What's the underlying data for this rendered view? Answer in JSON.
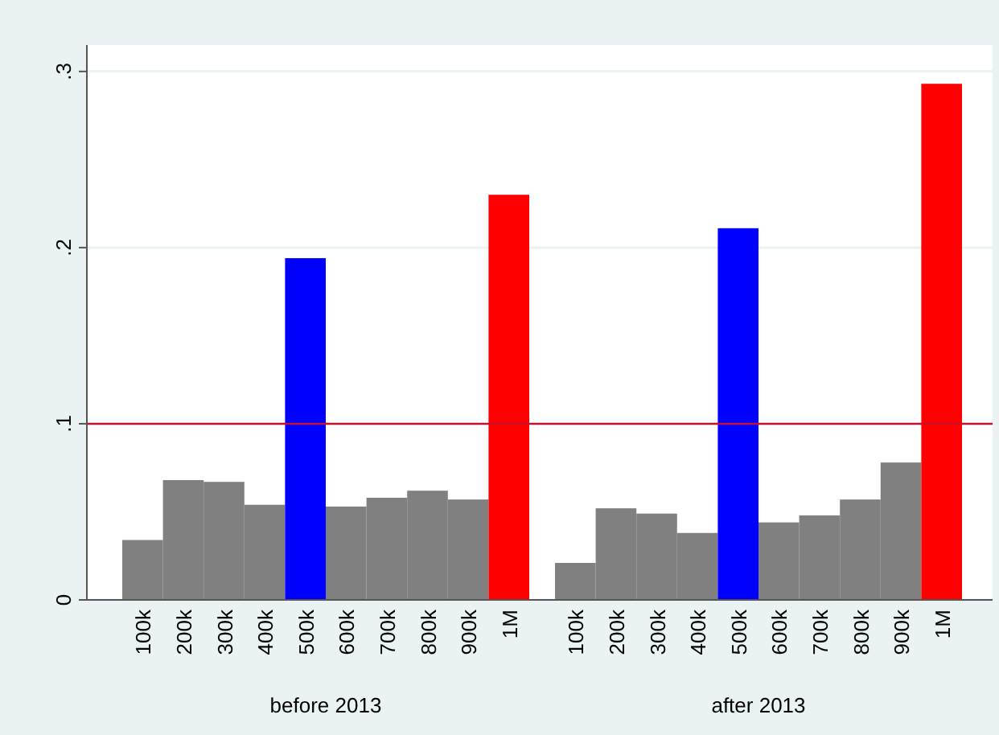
{
  "chart_data": {
    "type": "bar",
    "categories": [
      "100k",
      "200k",
      "300k",
      "400k",
      "500k",
      "600k",
      "700k",
      "800k",
      "900k",
      "1M",
      "100k",
      "200k",
      "300k",
      "400k",
      "500k",
      "600k",
      "700k",
      "800k",
      "900k",
      "1M"
    ],
    "values": [
      0.034,
      0.068,
      0.067,
      0.054,
      0.194,
      0.053,
      0.058,
      0.062,
      0.057,
      0.23,
      0.021,
      0.052,
      0.049,
      0.038,
      0.211,
      0.044,
      0.048,
      0.057,
      0.078,
      0.293
    ],
    "colors": [
      "#808080",
      "#808080",
      "#808080",
      "#808080",
      "#0000ff",
      "#808080",
      "#808080",
      "#808080",
      "#808080",
      "#ff0000",
      "#808080",
      "#808080",
      "#808080",
      "#808080",
      "#0000ff",
      "#808080",
      "#808080",
      "#808080",
      "#808080",
      "#ff0000"
    ],
    "ylim": [
      0,
      0.315
    ],
    "yticks": [
      0,
      {
        "value": 0.1,
        "label": ".1"
      },
      {
        "value": 0.2,
        "label": ".2"
      },
      {
        "value": 0.3,
        "label": ".3"
      }
    ],
    "grid": "y",
    "ref_lines": [
      {
        "axis": "y",
        "value": 0.1,
        "color": "#c8102e"
      }
    ],
    "annotations": [
      "before 2013",
      "after 2013"
    ]
  }
}
